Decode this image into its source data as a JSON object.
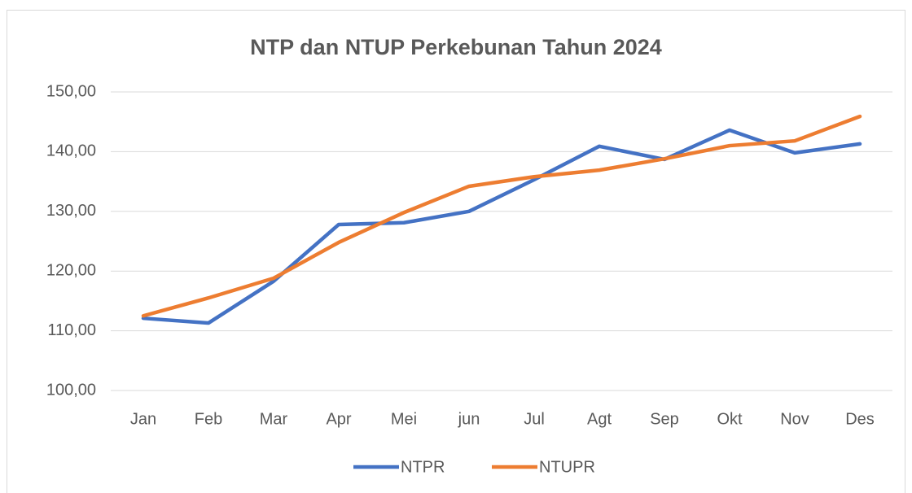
{
  "chart_data": {
    "type": "line",
    "title": "NTP dan NTUP Perkebunan Tahun 2024",
    "categories": [
      "Jan",
      "Feb",
      "Mar",
      "Apr",
      "Mei",
      "jun",
      "Jul",
      "Agt",
      "Sep",
      "Okt",
      "Nov",
      "Des"
    ],
    "series": [
      {
        "name": "NTPR",
        "color": "#4472c4",
        "values": [
          112.1,
          111.3,
          118.3,
          127.8,
          128.1,
          130.0,
          135.3,
          140.9,
          138.7,
          143.6,
          139.8,
          141.3
        ]
      },
      {
        "name": "NTUPR",
        "color": "#ed7d31",
        "values": [
          112.5,
          115.5,
          118.8,
          124.8,
          129.8,
          134.2,
          135.8,
          136.9,
          138.8,
          141.0,
          141.8,
          145.9
        ]
      }
    ],
    "ylim": [
      100,
      150
    ],
    "yticks": [
      {
        "value": 100,
        "label": "100,00"
      },
      {
        "value": 110,
        "label": "110,00"
      },
      {
        "value": 120,
        "label": "120,00"
      },
      {
        "value": 130,
        "label": "130,00"
      },
      {
        "value": 140,
        "label": "140,00"
      },
      {
        "value": 150,
        "label": "150,00"
      }
    ],
    "grid": true,
    "legend": "bottom"
  }
}
